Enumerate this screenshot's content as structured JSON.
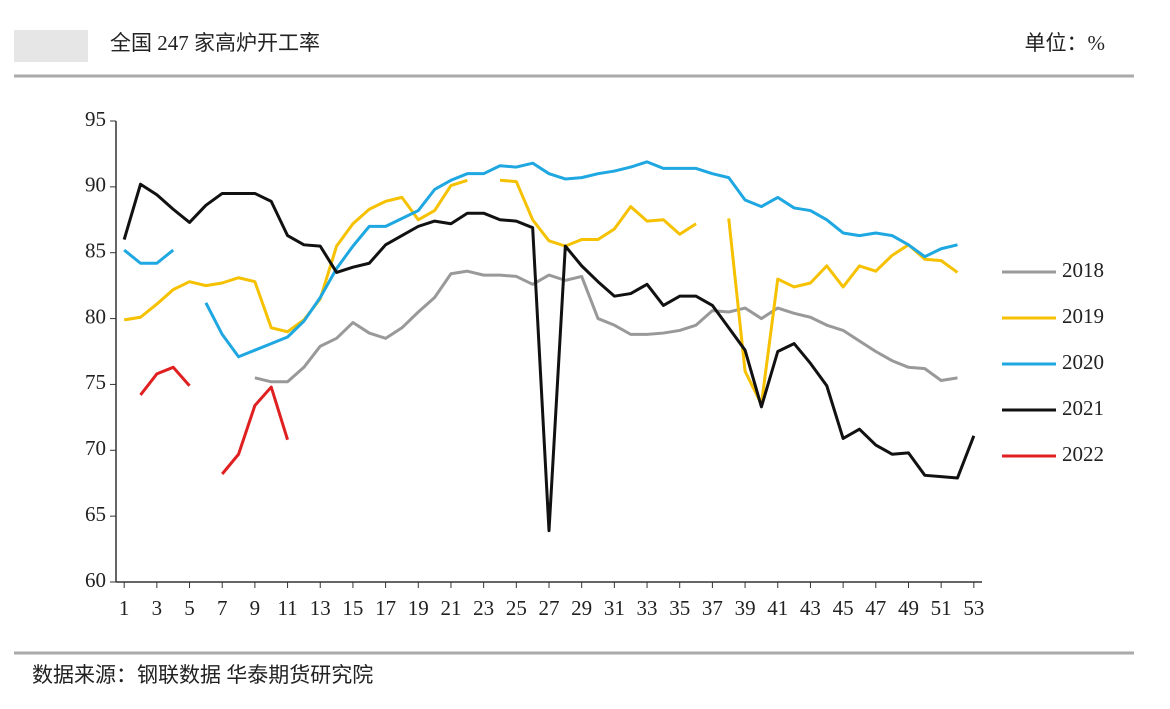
{
  "chart_data": {
    "type": "line",
    "title": "全国 247 家高炉开工率",
    "unit": "单位：%",
    "source": "数据来源：钢联数据 华泰期货研究院",
    "xlim": [
      0.5,
      53.5
    ],
    "xticks": [
      1,
      3,
      5,
      7,
      9,
      11,
      13,
      15,
      17,
      19,
      21,
      23,
      25,
      27,
      29,
      31,
      33,
      35,
      37,
      39,
      41,
      43,
      45,
      47,
      49,
      51,
      53
    ],
    "x": [
      1,
      2,
      3,
      4,
      5,
      6,
      7,
      8,
      9,
      10,
      11,
      12,
      13,
      14,
      15,
      16,
      17,
      18,
      19,
      20,
      21,
      22,
      23,
      24,
      25,
      26,
      27,
      28,
      29,
      30,
      31,
      32,
      33,
      34,
      35,
      36,
      37,
      38,
      39,
      40,
      41,
      42,
      43,
      44,
      45,
      46,
      47,
      48,
      49,
      50,
      51,
      52,
      53
    ],
    "ylim": [
      60,
      95
    ],
    "yticks": [
      60,
      65,
      70,
      75,
      80,
      85,
      90,
      95
    ],
    "legend": "right",
    "series": [
      {
        "name": "2018",
        "color": "#999999",
        "values": [
          null,
          null,
          null,
          null,
          null,
          null,
          null,
          null,
          75.5,
          75.2,
          75.2,
          76.3,
          77.9,
          78.5,
          79.7,
          78.9,
          78.5,
          79.3,
          80.5,
          81.6,
          83.4,
          83.6,
          83.3,
          83.3,
          83.2,
          82.6,
          83.3,
          82.9,
          83.2,
          80.0,
          79.5,
          78.8,
          78.8,
          78.9,
          79.1,
          79.5,
          80.6,
          80.5,
          80.8,
          80.0,
          80.8,
          80.4,
          80.1,
          79.5,
          79.1,
          78.3,
          77.5,
          76.8,
          76.3,
          76.2,
          75.3,
          75.5,
          null
        ]
      },
      {
        "name": "2019",
        "color": "#f5c100",
        "values": [
          79.9,
          80.1,
          81.1,
          82.2,
          82.8,
          82.5,
          82.7,
          83.1,
          82.8,
          79.3,
          79.0,
          79.9,
          81.5,
          85.5,
          87.2,
          88.3,
          88.9,
          89.2,
          87.5,
          88.2,
          90.1,
          90.5,
          null,
          90.5,
          90.4,
          87.5,
          85.9,
          85.5,
          86.0,
          86.0,
          86.8,
          88.5,
          87.4,
          87.5,
          86.4,
          87.2,
          null,
          87.6,
          76.0,
          73.5,
          83.0,
          82.4,
          82.7,
          84.0,
          82.4,
          84.0,
          83.6,
          84.8,
          85.6,
          84.5,
          84.4,
          83.5,
          null
        ]
      },
      {
        "name": "2020",
        "color": "#1ea7e1",
        "values": [
          85.2,
          84.2,
          84.2,
          85.2,
          null,
          81.2,
          78.8,
          77.1,
          77.6,
          78.1,
          78.6,
          79.8,
          81.6,
          83.8,
          85.5,
          87.0,
          87.0,
          87.6,
          88.2,
          89.8,
          90.5,
          91.0,
          91.0,
          91.6,
          91.5,
          91.8,
          91.0,
          90.6,
          90.7,
          91.0,
          91.2,
          91.5,
          91.9,
          91.4,
          91.4,
          91.4,
          91.0,
          90.7,
          89.0,
          88.5,
          89.2,
          88.4,
          88.2,
          87.5,
          86.5,
          86.3,
          86.5,
          86.3,
          85.6,
          84.7,
          85.3,
          85.6,
          null
        ]
      },
      {
        "name": "2021",
        "color": "#111111",
        "values": [
          86.0,
          90.2,
          89.4,
          88.3,
          87.3,
          88.6,
          89.5,
          89.5,
          89.5,
          88.9,
          86.3,
          85.6,
          85.5,
          83.5,
          83.9,
          84.2,
          85.6,
          86.3,
          87.0,
          87.4,
          87.2,
          88.0,
          88.0,
          87.5,
          87.4,
          86.9,
          63.9,
          85.5,
          84.0,
          82.8,
          81.7,
          81.9,
          82.6,
          81.0,
          81.7,
          81.7,
          81.0,
          79.3,
          77.6,
          73.3,
          77.5,
          78.1,
          76.6,
          74.9,
          70.9,
          71.6,
          70.4,
          69.7,
          69.8,
          68.1,
          68.0,
          67.9,
          71.1
        ]
      },
      {
        "name": "2022",
        "color": "#e02020",
        "values": [
          null,
          74.2,
          75.8,
          76.3,
          74.9,
          null,
          68.2,
          69.7,
          73.4,
          74.8,
          70.8,
          null,
          null,
          null,
          null,
          null,
          null,
          null,
          null,
          null,
          null,
          null,
          null,
          null,
          null,
          null,
          null,
          null,
          null,
          null,
          null,
          null,
          null,
          null,
          null,
          null,
          null,
          null,
          null,
          null,
          null,
          null,
          null,
          null,
          null,
          null,
          null,
          null,
          null,
          null,
          null,
          null,
          null
        ]
      }
    ]
  }
}
